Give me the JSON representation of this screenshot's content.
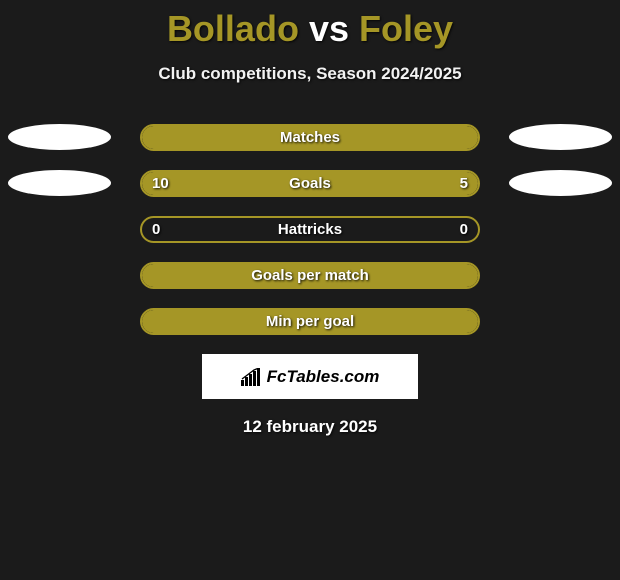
{
  "colors": {
    "background": "#1b1b1b",
    "accent": "#a59626",
    "ellipse_left": "#ffffff",
    "ellipse_right": "#ffffff",
    "text": "#ffffff",
    "logo_bg": "#ffffff",
    "logo_text": "#000000"
  },
  "title": {
    "player1": "Bollado",
    "vs": "vs",
    "player2": "Foley",
    "fontsize": 36,
    "color_p1": "#a59626",
    "color_vs": "#ffffff",
    "color_p2": "#a59626"
  },
  "subtitle": "Club competitions, Season 2024/2025",
  "subtitle_fontsize": 17,
  "bar": {
    "track_width": 340,
    "track_height": 27,
    "border_radius": 14,
    "border_color": "#a59626",
    "fill_color": "#a59626"
  },
  "ellipse": {
    "width": 103,
    "height": 26
  },
  "rows": [
    {
      "label": "Matches",
      "left_val": "",
      "right_val": "",
      "left_pct": 100,
      "right_pct": 0,
      "show_ellipse": true
    },
    {
      "label": "Goals",
      "left_val": "10",
      "right_val": "5",
      "left_pct": 66,
      "right_pct": 34,
      "show_ellipse": true
    },
    {
      "label": "Hattricks",
      "left_val": "0",
      "right_val": "0",
      "left_pct": 0,
      "right_pct": 0,
      "show_ellipse": false
    },
    {
      "label": "Goals per match",
      "left_val": "",
      "right_val": "",
      "left_pct": 100,
      "right_pct": 0,
      "show_ellipse": false
    },
    {
      "label": "Min per goal",
      "left_val": "",
      "right_val": "",
      "left_pct": 100,
      "right_pct": 0,
      "show_ellipse": false
    }
  ],
  "logo_text": "FcTables.com",
  "date": "12 february 2025"
}
